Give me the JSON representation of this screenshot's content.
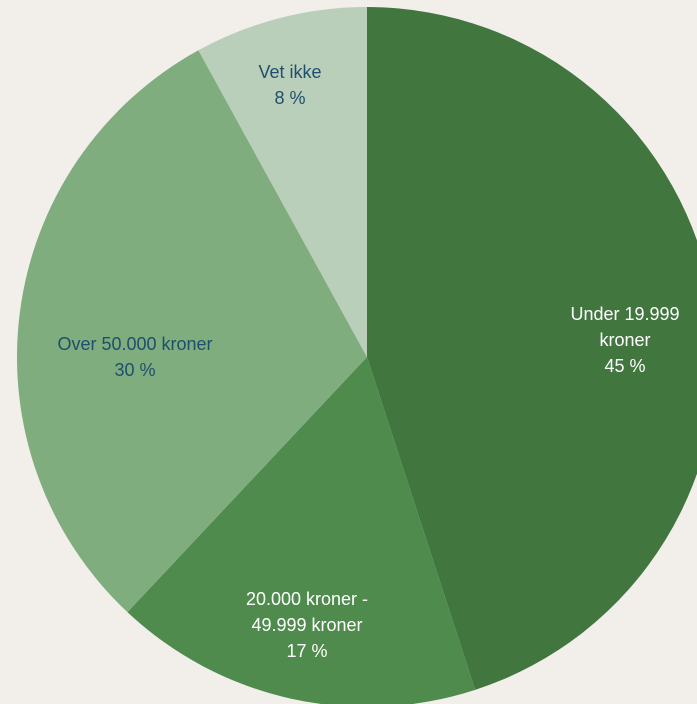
{
  "chart_data": {
    "type": "pie",
    "categories": [
      "Under 19.999 kroner",
      "20.000 kroner - 49.999 kroner",
      "Over 50.000 kroner",
      "Vet ikke"
    ],
    "values": [
      45,
      17,
      30,
      8
    ],
    "value_labels": [
      "45 %",
      "17 %",
      "30 %",
      "8 %"
    ],
    "colors": [
      "#41763f",
      "#4e8b4d",
      "#7fad7e",
      "#b9cfb9"
    ],
    "label_colors": [
      "#ffffff",
      "#ffffff",
      "#1f4e6e",
      "#1f4e6e"
    ]
  }
}
